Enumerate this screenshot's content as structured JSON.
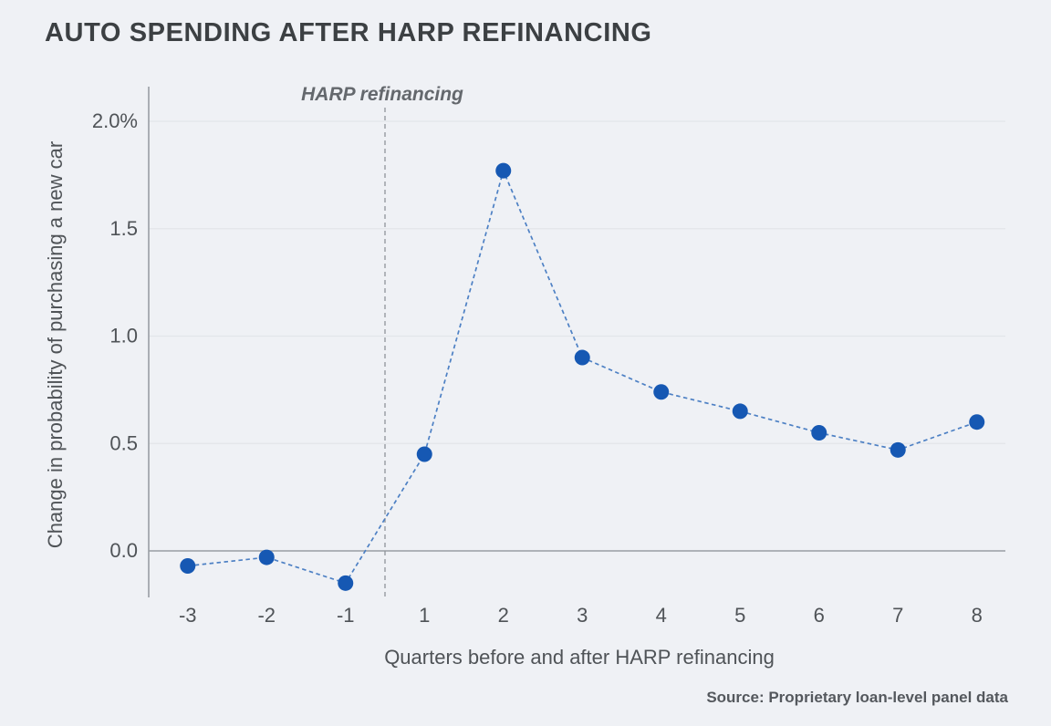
{
  "page": {
    "title": "AUTO SPENDING AFTER HARP REFINANCING",
    "source": "Source: Proprietary loan-level panel data"
  },
  "chart_data": {
    "type": "line",
    "line_style": "dashed",
    "marker": "circle",
    "title": "AUTO SPENDING AFTER HARP REFINANCING",
    "xlabel": "Quarters before and after HARP refinancing",
    "ylabel": "Change in probability of purchasing a new car",
    "x": [
      -3,
      -2,
      -1,
      1,
      2,
      3,
      4,
      5,
      6,
      7,
      8
    ],
    "values": [
      -0.07,
      -0.03,
      -0.15,
      0.45,
      1.77,
      0.9,
      0.74,
      0.65,
      0.55,
      0.47,
      0.6
    ],
    "x_tick_labels": [
      "-3",
      "-2",
      "-1",
      "1",
      "2",
      "3",
      "4",
      "5",
      "6",
      "7",
      "8"
    ],
    "y_ticks": [
      0,
      0.5,
      1,
      1.5,
      2
    ],
    "y_tick_labels": [
      "0.0",
      "0.5",
      "1.0",
      "1.5",
      "2.0%"
    ],
    "ylim": [
      -0.25,
      2.15
    ],
    "grid": "horizontal",
    "legend": "none",
    "annotation": {
      "label": "HARP refinancing",
      "x": 0
    },
    "vline_x": 0,
    "colors": {
      "point": "#1658b3",
      "line": "#4d80c4",
      "grid": "#e2e5e9",
      "axis": "#999ea4",
      "vline": "#8f9499",
      "background": "#eff1f5",
      "title_text": "#3c4043",
      "label_text": "#4f5357",
      "annotation_text": "#64686d"
    }
  }
}
